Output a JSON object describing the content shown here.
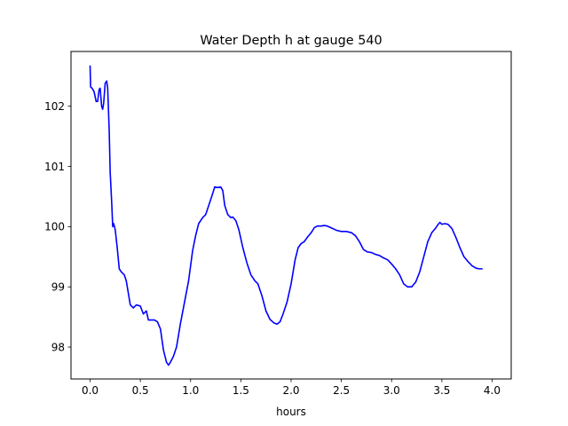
{
  "chart_data": {
    "type": "line",
    "title": "Water Depth h at gauge 540",
    "xlabel": "hours",
    "ylabel": "",
    "xlim": [
      -0.19,
      4.19
    ],
    "ylim": [
      97.47,
      102.91
    ],
    "xticks": [
      0.0,
      0.5,
      1.0,
      1.5,
      2.0,
      2.5,
      3.0,
      3.5,
      4.0
    ],
    "xtick_labels": [
      "0.0",
      "0.5",
      "1.0",
      "1.5",
      "2.0",
      "2.5",
      "3.0",
      "3.5",
      "4.0"
    ],
    "yticks": [
      98,
      99,
      100,
      101,
      102
    ],
    "ytick_labels": [
      "98",
      "99",
      "100",
      "101",
      "102"
    ],
    "grid": false,
    "line_color": "#0000ff",
    "series": [
      {
        "values": [
          [
            0.0,
            102.67
          ],
          [
            0.005,
            102.32
          ],
          [
            0.02,
            102.3
          ],
          [
            0.04,
            102.24
          ],
          [
            0.06,
            102.08
          ],
          [
            0.075,
            102.08
          ],
          [
            0.09,
            102.28
          ],
          [
            0.1,
            102.3
          ],
          [
            0.115,
            102.0
          ],
          [
            0.125,
            101.95
          ],
          [
            0.135,
            102.05
          ],
          [
            0.15,
            102.38
          ],
          [
            0.165,
            102.42
          ],
          [
            0.175,
            102.3
          ],
          [
            0.19,
            101.6
          ],
          [
            0.2,
            100.9
          ],
          [
            0.215,
            100.4
          ],
          [
            0.225,
            100.0
          ],
          [
            0.235,
            100.05
          ],
          [
            0.25,
            99.95
          ],
          [
            0.27,
            99.65
          ],
          [
            0.29,
            99.3
          ],
          [
            0.31,
            99.25
          ],
          [
            0.34,
            99.2
          ],
          [
            0.36,
            99.1
          ],
          [
            0.38,
            98.9
          ],
          [
            0.4,
            98.7
          ],
          [
            0.43,
            98.65
          ],
          [
            0.46,
            98.7
          ],
          [
            0.5,
            98.68
          ],
          [
            0.53,
            98.55
          ],
          [
            0.56,
            98.6
          ],
          [
            0.58,
            98.45
          ],
          [
            0.62,
            98.45
          ],
          [
            0.64,
            98.45
          ],
          [
            0.67,
            98.42
          ],
          [
            0.7,
            98.3
          ],
          [
            0.73,
            97.95
          ],
          [
            0.76,
            97.75
          ],
          [
            0.78,
            97.7
          ],
          [
            0.8,
            97.75
          ],
          [
            0.83,
            97.85
          ],
          [
            0.86,
            98.0
          ],
          [
            0.9,
            98.4
          ],
          [
            0.94,
            98.75
          ],
          [
            0.98,
            99.1
          ],
          [
            1.02,
            99.6
          ],
          [
            1.05,
            99.85
          ],
          [
            1.08,
            100.05
          ],
          [
            1.12,
            100.15
          ],
          [
            1.15,
            100.2
          ],
          [
            1.18,
            100.35
          ],
          [
            1.21,
            100.5
          ],
          [
            1.24,
            100.66
          ],
          [
            1.27,
            100.65
          ],
          [
            1.3,
            100.66
          ],
          [
            1.32,
            100.6
          ],
          [
            1.34,
            100.35
          ],
          [
            1.37,
            100.2
          ],
          [
            1.4,
            100.15
          ],
          [
            1.42,
            100.16
          ],
          [
            1.45,
            100.1
          ],
          [
            1.48,
            99.95
          ],
          [
            1.52,
            99.65
          ],
          [
            1.56,
            99.4
          ],
          [
            1.6,
            99.2
          ],
          [
            1.64,
            99.1
          ],
          [
            1.67,
            99.05
          ],
          [
            1.71,
            98.85
          ],
          [
            1.75,
            98.6
          ],
          [
            1.79,
            98.46
          ],
          [
            1.83,
            98.4
          ],
          [
            1.86,
            98.38
          ],
          [
            1.89,
            98.42
          ],
          [
            1.92,
            98.55
          ],
          [
            1.96,
            98.75
          ],
          [
            2.0,
            99.05
          ],
          [
            2.04,
            99.45
          ],
          [
            2.07,
            99.65
          ],
          [
            2.1,
            99.72
          ],
          [
            2.13,
            99.75
          ],
          [
            2.16,
            99.82
          ],
          [
            2.2,
            99.9
          ],
          [
            2.23,
            99.98
          ],
          [
            2.26,
            100.01
          ],
          [
            2.3,
            100.01
          ],
          [
            2.33,
            100.02
          ],
          [
            2.36,
            100.01
          ],
          [
            2.4,
            99.98
          ],
          [
            2.45,
            99.94
          ],
          [
            2.5,
            99.92
          ],
          [
            2.55,
            99.92
          ],
          [
            2.6,
            99.9
          ],
          [
            2.64,
            99.85
          ],
          [
            2.68,
            99.75
          ],
          [
            2.72,
            99.62
          ],
          [
            2.76,
            99.58
          ],
          [
            2.8,
            99.57
          ],
          [
            2.84,
            99.54
          ],
          [
            2.88,
            99.52
          ],
          [
            2.92,
            99.48
          ],
          [
            2.96,
            99.45
          ],
          [
            3.0,
            99.38
          ],
          [
            3.04,
            99.3
          ],
          [
            3.08,
            99.2
          ],
          [
            3.12,
            99.05
          ],
          [
            3.16,
            99.0
          ],
          [
            3.2,
            99.0
          ],
          [
            3.24,
            99.08
          ],
          [
            3.28,
            99.25
          ],
          [
            3.32,
            99.5
          ],
          [
            3.36,
            99.75
          ],
          [
            3.4,
            99.9
          ],
          [
            3.44,
            99.98
          ],
          [
            3.46,
            100.03
          ],
          [
            3.48,
            100.07
          ],
          [
            3.5,
            100.04
          ],
          [
            3.53,
            100.05
          ],
          [
            3.56,
            100.04
          ],
          [
            3.6,
            99.97
          ],
          [
            3.64,
            99.82
          ],
          [
            3.68,
            99.65
          ],
          [
            3.72,
            99.5
          ],
          [
            3.76,
            99.42
          ],
          [
            3.8,
            99.35
          ],
          [
            3.84,
            99.31
          ],
          [
            3.87,
            99.3
          ],
          [
            3.9,
            99.3
          ]
        ]
      }
    ]
  }
}
